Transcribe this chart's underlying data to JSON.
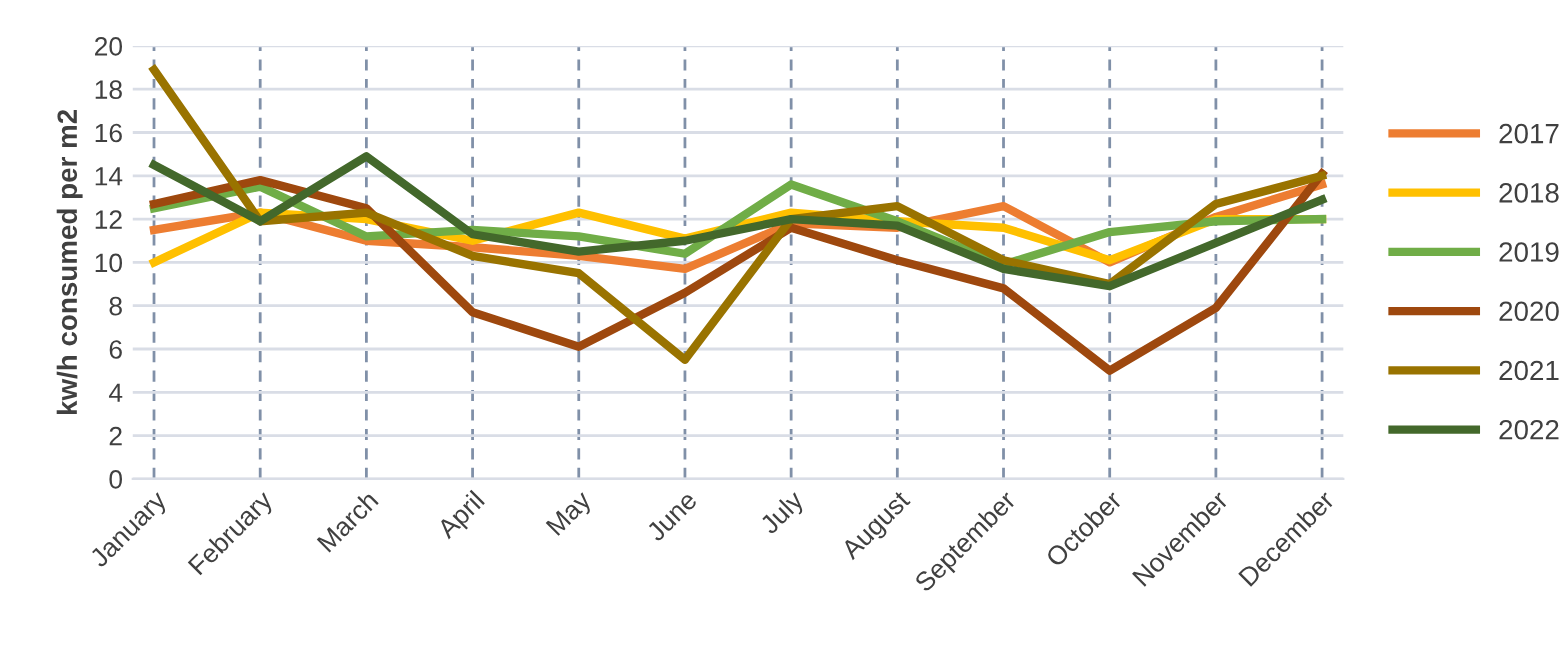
{
  "chart_data": {
    "type": "line",
    "ylabel": "kw/h consumed per m2",
    "categories": [
      "January",
      "February",
      "March",
      "April",
      "May",
      "June",
      "July",
      "August",
      "September",
      "October",
      "November",
      "December"
    ],
    "ylim": [
      0,
      20
    ],
    "yticks": [
      0,
      2,
      4,
      6,
      8,
      10,
      12,
      14,
      16,
      18,
      20
    ],
    "grid": true,
    "legend": "right",
    "marker": "none",
    "line_style": "solid",
    "series": [
      {
        "name": "2017",
        "color": "#ed7d31",
        "values": [
          11.5,
          12.3,
          11.0,
          10.7,
          10.3,
          9.7,
          11.8,
          11.6,
          12.6,
          10.0,
          12.1,
          13.6
        ]
      },
      {
        "name": "2018",
        "color": "#ffc000",
        "values": [
          10.0,
          12.3,
          12.0,
          11.0,
          12.3,
          11.1,
          12.3,
          11.9,
          11.6,
          10.1,
          12.0,
          12.0
        ]
      },
      {
        "name": "2019",
        "color": "#70ad47",
        "values": [
          12.5,
          13.5,
          11.2,
          11.5,
          11.2,
          10.4,
          13.6,
          11.9,
          9.9,
          11.4,
          11.9,
          12.0
        ]
      },
      {
        "name": "2020",
        "color": "#9e480e",
        "values": [
          12.7,
          13.8,
          12.5,
          7.7,
          6.1,
          8.6,
          11.6,
          10.1,
          8.8,
          5.0,
          7.9,
          14.1
        ]
      },
      {
        "name": "2021",
        "color": "#997300",
        "values": [
          18.9,
          11.9,
          12.3,
          10.3,
          9.5,
          5.5,
          12.0,
          12.6,
          10.1,
          9.0,
          12.7,
          14.0
        ]
      },
      {
        "name": "2022",
        "color": "#43682b",
        "values": [
          14.5,
          11.9,
          14.9,
          11.3,
          10.5,
          11.0,
          12.0,
          11.7,
          9.7,
          8.9,
          10.9,
          12.9
        ]
      }
    ]
  }
}
